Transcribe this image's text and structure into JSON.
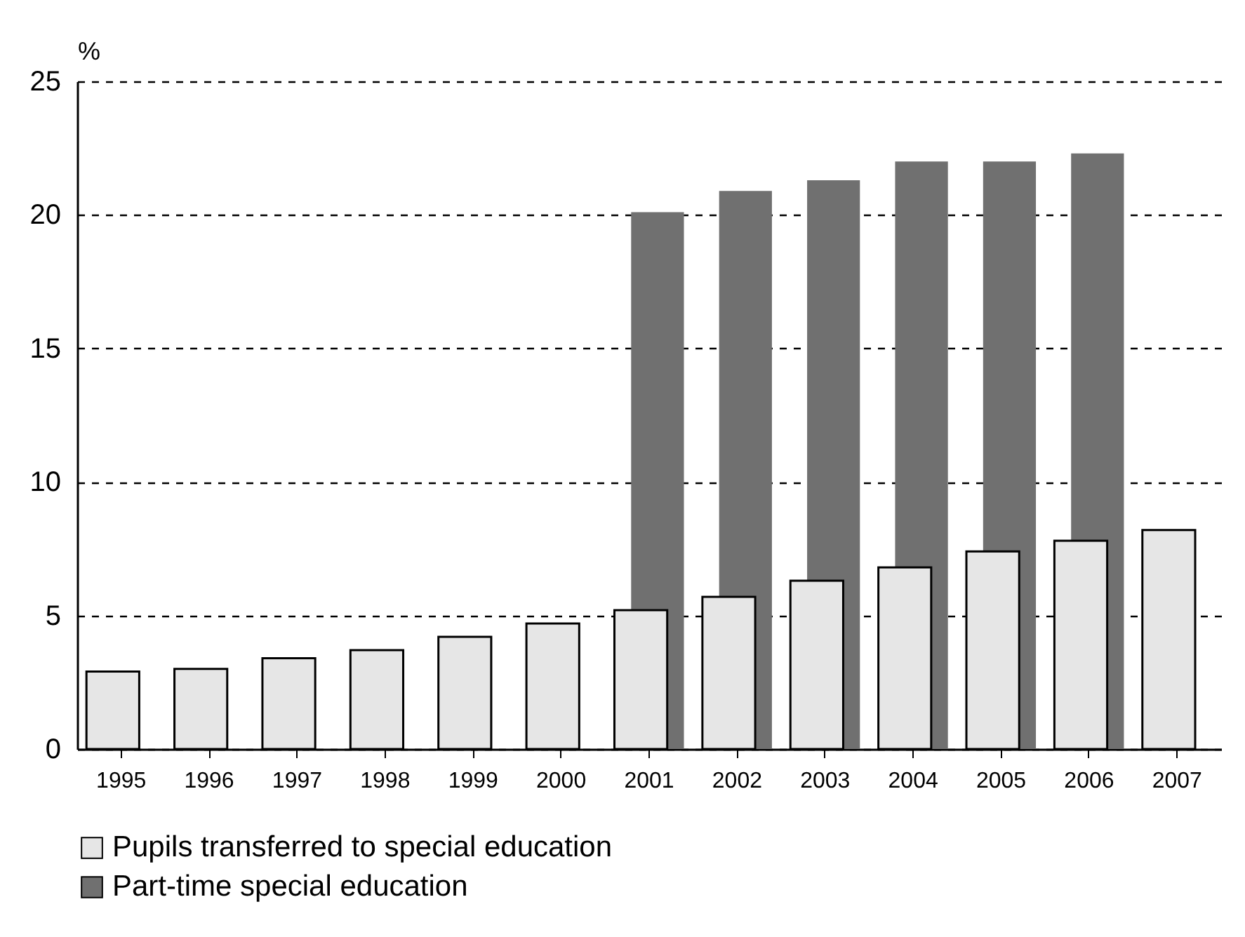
{
  "chart_data": {
    "type": "bar",
    "ylabel": "%",
    "categories": [
      "1995",
      "1996",
      "1997",
      "1998",
      "1999",
      "2000",
      "2001",
      "2002",
      "2003",
      "2004",
      "2005",
      "2006",
      "2007"
    ],
    "series": [
      {
        "name": "Pupils transferred to special education",
        "color": "#e6e6e6",
        "values": [
          2.9,
          3.0,
          3.4,
          3.7,
          4.2,
          4.7,
          5.2,
          5.7,
          6.3,
          6.8,
          7.4,
          7.8,
          8.2
        ]
      },
      {
        "name": "Part-time special education",
        "color": "#707070",
        "values": [
          null,
          null,
          null,
          null,
          null,
          null,
          20.1,
          20.9,
          21.3,
          22.0,
          22.0,
          22.3,
          null
        ]
      }
    ],
    "ylim": [
      0,
      25
    ],
    "yticks": [
      0,
      5,
      10,
      15,
      20,
      25
    ],
    "grid": "y",
    "legend": "bottom"
  }
}
